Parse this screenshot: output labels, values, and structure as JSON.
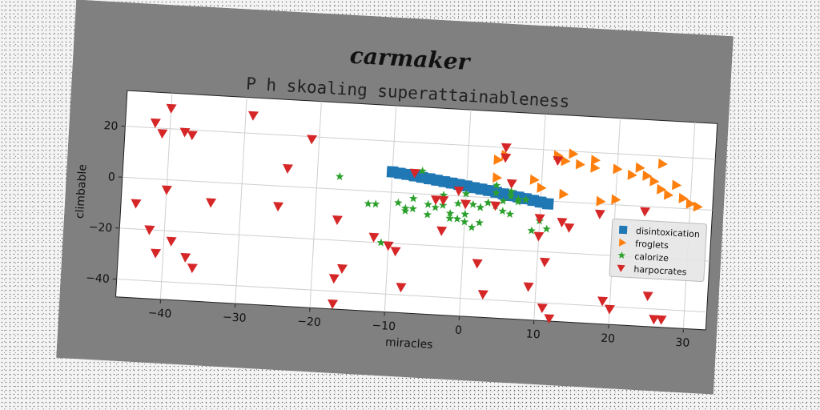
{
  "suptitle": "carmaker",
  "chart_data": {
    "type": "scatter",
    "title": "P h skoaling superattainableness",
    "xlabel": "miracles",
    "ylabel": "climbable",
    "xlim": [
      -46,
      33
    ],
    "ylim": [
      -47,
      34
    ],
    "xticks": [
      -40,
      -30,
      -20,
      -10,
      0,
      10,
      20,
      30
    ],
    "yticks": [
      -40,
      -20,
      0,
      20
    ],
    "xtick_labels": [
      "−40",
      "−30",
      "−20",
      "−10",
      "0",
      "10",
      "20",
      "30"
    ],
    "ytick_labels": [
      "−40",
      "−20",
      "0",
      "20"
    ],
    "grid": true,
    "legend_position": "right",
    "series": [
      {
        "name": "disintoxication",
        "marker": "square",
        "color": "#1f77b4",
        "x": [
          -10,
          -9,
          -8,
          -7,
          -6,
          -5,
          -4,
          -3,
          -2,
          -1,
          0,
          1,
          2,
          3,
          4,
          5,
          6,
          7,
          8,
          9,
          10,
          11
        ],
        "y": [
          8,
          7.6,
          7.3,
          6.9,
          6.5,
          6.1,
          5.7,
          5.3,
          4.9,
          4.5,
          4.1,
          3.6,
          3.2,
          2.8,
          2.3,
          1.8,
          1.3,
          0.9,
          0.4,
          -0.1,
          -0.6,
          -1.1
        ]
      },
      {
        "name": "froglets",
        "marker": "triangle-right",
        "color": "#ff7f0e",
        "x": [
          4,
          5,
          9,
          12,
          13,
          14,
          17,
          18,
          20,
          23,
          24,
          25,
          26,
          26,
          27,
          28,
          29,
          30,
          31,
          20,
          22,
          15,
          17,
          10,
          13,
          4
        ],
        "y": [
          15,
          17,
          8,
          18,
          16,
          19,
          17,
          1,
          2,
          15,
          12,
          10,
          17,
          7,
          5,
          9,
          4,
          2,
          1,
          14,
          12,
          15,
          14,
          5,
          3,
          8
        ],
        "size": 13
      },
      {
        "name": "calorize",
        "marker": "star",
        "color": "#2ca02c",
        "x": [
          -17,
          -13,
          -11,
          -9,
          -8,
          -7,
          -6,
          -5,
          -4,
          -3,
          -2,
          -1,
          0,
          1,
          2,
          3,
          4,
          5,
          6,
          7,
          -8,
          -5,
          -2,
          1,
          3,
          5,
          7,
          9,
          11,
          -1,
          0,
          2,
          4,
          6,
          8,
          10,
          -12,
          -7,
          -3,
          0,
          2,
          4,
          6
        ],
        "y": [
          5,
          -5,
          -20,
          -4,
          -6,
          -2,
          9,
          -8,
          -5,
          0,
          -7,
          -3,
          -10,
          -12,
          -4,
          -2,
          5,
          -1,
          -6,
          0,
          -7,
          -4,
          -9,
          -3,
          -2,
          -5,
          -1,
          -12,
          -11,
          -9,
          1,
          -4,
          -3,
          3,
          0,
          -8,
          -5,
          -6,
          -4,
          -7,
          -10,
          2,
          1
        ],
        "size": 11
      },
      {
        "name": "harpocrates",
        "marker": "triangle-down",
        "color": "#d62728",
        "x": [
          -40,
          -42,
          -41,
          -38,
          -37,
          -40,
          -44,
          -42,
          -41,
          -39,
          -36,
          -34,
          -29,
          -24,
          -21,
          -17,
          -17,
          -17,
          -16,
          -12,
          -10,
          -9,
          -8,
          -7,
          -4,
          -3,
          2,
          3,
          5,
          5,
          6,
          9,
          10,
          11,
          11,
          12,
          12,
          14,
          18,
          19,
          20,
          24,
          25,
          26,
          27,
          27,
          -1,
          0,
          -3,
          10,
          13,
          -25,
          4,
          -42,
          -37
        ],
        "y": [
          28,
          22,
          18,
          19,
          18,
          -4,
          -10,
          -20,
          -29,
          -24,
          -34,
          -8,
          27,
          7,
          19,
          -12,
          -35,
          -45,
          -31,
          -18,
          -21,
          -23,
          -37,
          8,
          -2,
          -14,
          -26,
          -38,
          20,
          16,
          6,
          -34,
          -14,
          -24,
          -42,
          16,
          -46,
          -10,
          -4,
          -38,
          -41,
          -2,
          -35,
          -44,
          -50,
          -44,
          2,
          -3,
          -2,
          -7,
          -8,
          -8,
          -3,
          -20,
          -30
        ],
        "size": 13
      }
    ]
  }
}
